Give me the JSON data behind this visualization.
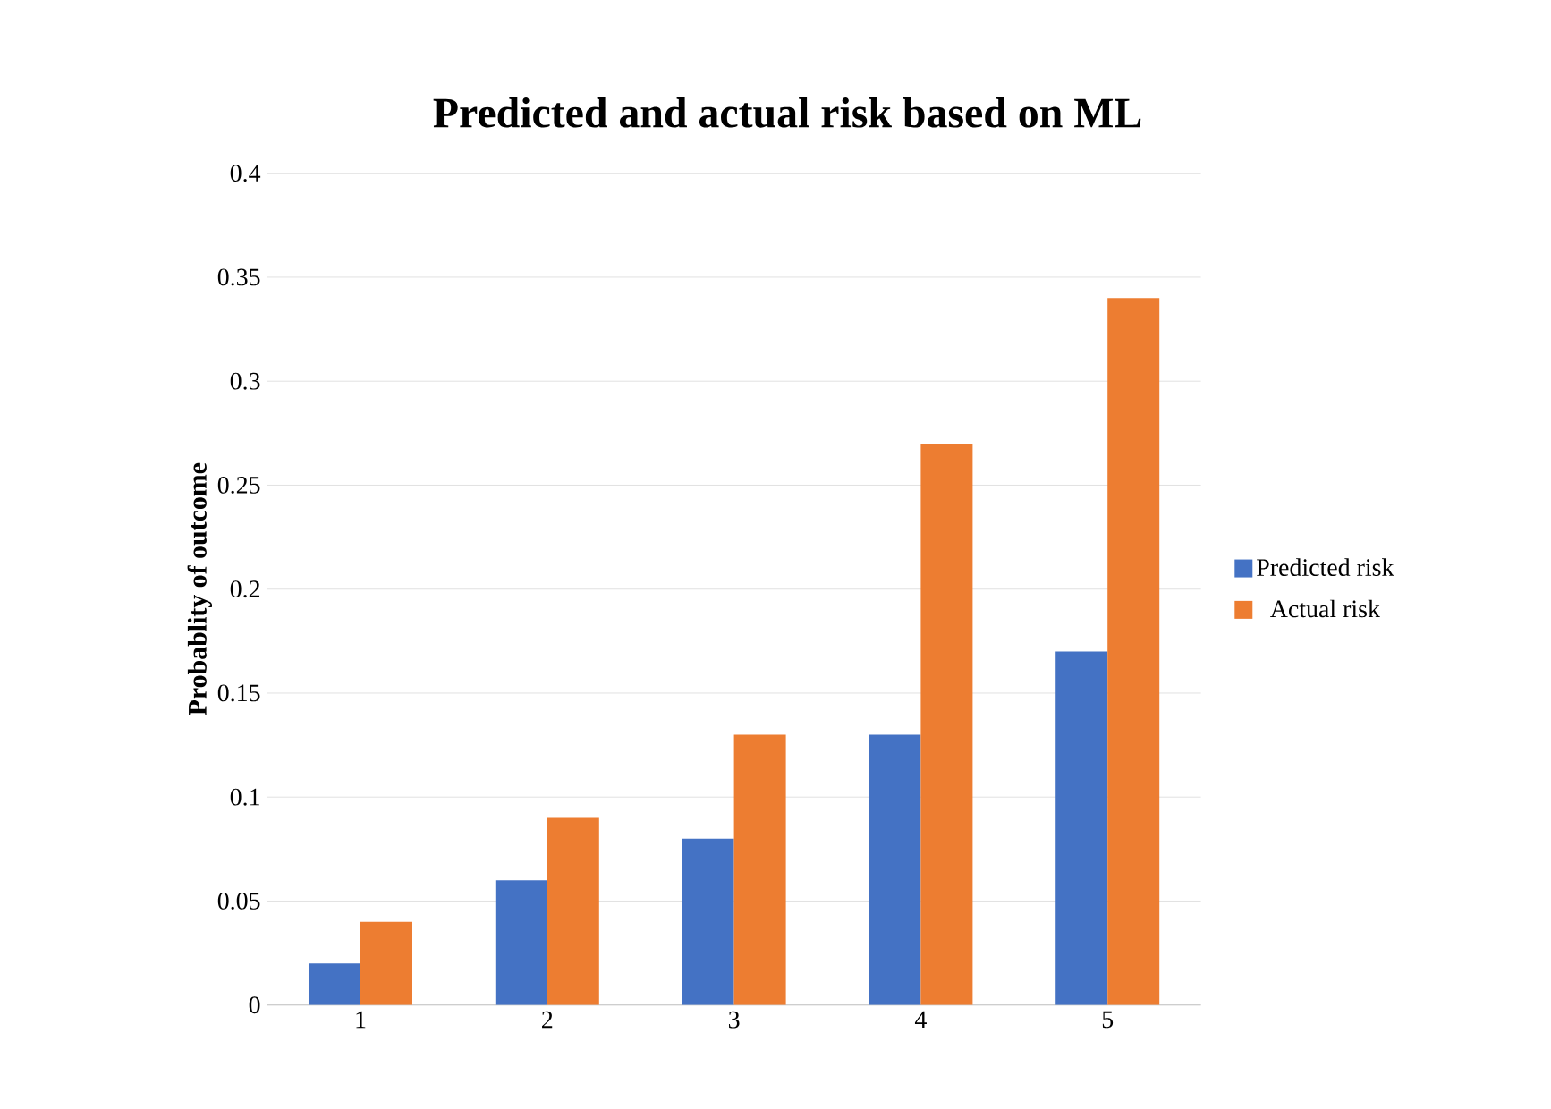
{
  "chart_data": {
    "type": "bar",
    "title": "Predicted and actual risk based on ML",
    "ylabel": "Probablity of outcome",
    "categories": [
      "1",
      "2",
      "3",
      "4",
      "5"
    ],
    "series": [
      {
        "name": "Predicted risk",
        "color": "#4472c4",
        "values": [
          0.02,
          0.06,
          0.08,
          0.13,
          0.17
        ]
      },
      {
        "name": "Actual risk",
        "color": "#ed7d31",
        "values": [
          0.04,
          0.09,
          0.13,
          0.27,
          0.34
        ]
      }
    ],
    "ylim": [
      0,
      0.4
    ],
    "yticks": [
      0,
      0.05,
      0.1,
      0.15,
      0.2,
      0.25,
      0.3,
      0.35,
      0.4
    ],
    "grid": "y",
    "legend": "right"
  }
}
